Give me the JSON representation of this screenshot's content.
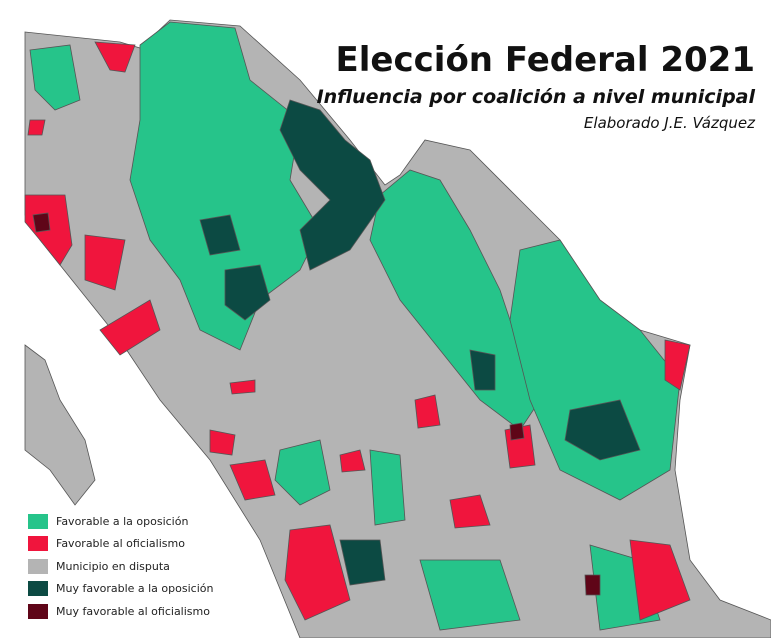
{
  "header": {
    "title": "Elección Federal 2021",
    "subtitle": "Influencia por coalición a nivel municipal",
    "credit": "Elaborado J.E. Vázquez"
  },
  "legend": {
    "items": [
      {
        "label": "Favorable a la oposición",
        "color": "#26c48a"
      },
      {
        "label": "Favorable al oficialismo",
        "color": "#f0153d"
      },
      {
        "label": "Municipio en disputa",
        "color": "#b4b4b4"
      },
      {
        "label": "Muy favorable a la oposición",
        "color": "#0c4a43"
      },
      {
        "label": "Muy favorable al oficialismo",
        "color": "#5f0518"
      }
    ]
  }
}
